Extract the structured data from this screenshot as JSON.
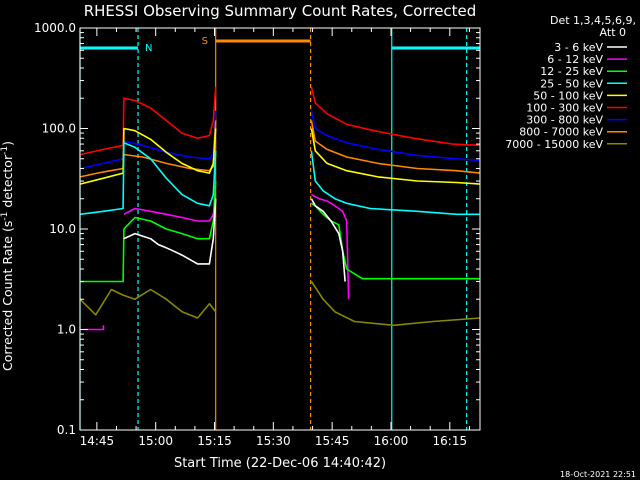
{
  "chart_data": {
    "type": "line",
    "title": "RHESSI Observing Summary Count Rates, Corrected",
    "xlabel": "Start Time (22-Dec-06 14:40:42)",
    "ylabel_main": "Corrected Count Rate (s",
    "ylabel_sup1": "-1",
    "ylabel_mid": " detector",
    "ylabel_sup2": "-1",
    "ylabel_end": ")",
    "y_scale": "log",
    "ylim": [
      0.1,
      1000
    ],
    "xlim_minutes": [
      0,
      102
    ],
    "x_ticks": [
      {
        "m": 4.3,
        "label": "14:45"
      },
      {
        "m": 19.3,
        "label": "15:00"
      },
      {
        "m": 34.3,
        "label": "15:15"
      },
      {
        "m": 49.3,
        "label": "15:30"
      },
      {
        "m": 64.3,
        "label": "15:45"
      },
      {
        "m": 79.3,
        "label": "16:00"
      },
      {
        "m": 94.3,
        "label": "16:15"
      }
    ],
    "y_ticks": [
      {
        "v": 1000,
        "label": "1000.0"
      },
      {
        "v": 100,
        "label": "100.0"
      },
      {
        "v": 10,
        "label": "10.0"
      },
      {
        "v": 1,
        "label": "1.0"
      },
      {
        "v": 0.1,
        "label": "0.1"
      }
    ],
    "legend_header": [
      "Det 1,3,4,5,6,9,",
      "Att 0"
    ],
    "legend_position": "right",
    "footer": "18-Oct-2021 22:51",
    "series": [
      {
        "name": "3 - 6 keV",
        "color": "#ffffff"
      },
      {
        "name": "6 - 12 keV",
        "color": "#ff00ff"
      },
      {
        "name": "12 - 25 keV",
        "color": "#00ff00"
      },
      {
        "name": "25 - 50 keV",
        "color": "#00ffff"
      },
      {
        "name": "50 - 100 keV",
        "color": "#ffff00"
      },
      {
        "name": "100 - 300 keV",
        "color": "#ff0000"
      },
      {
        "name": "300 - 800 keV",
        "color": "#0000ff"
      },
      {
        "name": "800 - 7000 keV",
        "color": "#ff8800"
      },
      {
        "name": "7000 - 15000 keV",
        "color": "#888800"
      }
    ],
    "night": {
      "label": "N",
      "color": "#00ffff",
      "intervals": [
        [
          0,
          14.8
        ],
        [
          79.5,
          102
        ]
      ],
      "boundaries": [
        0,
        14.8,
        79.5,
        98.6
      ]
    },
    "saa": {
      "label": "S",
      "color": "#ff8800",
      "interval": [
        34.6,
        58.8
      ]
    },
    "traces": [
      {
        "color": "#ff0000",
        "segments": [
          [
            [
              0,
              55
            ],
            [
              6,
              62
            ],
            [
              11,
              68
            ],
            [
              11.2,
              200
            ],
            [
              14,
              190
            ],
            [
              18,
              160
            ],
            [
              22,
              120
            ],
            [
              26,
              90
            ],
            [
              30,
              80
            ],
            [
              33,
              85
            ],
            [
              34,
              120
            ],
            [
              34.6,
              260
            ]
          ],
          [
            [
              59,
              260
            ],
            [
              60,
              180
            ],
            [
              63,
              140
            ],
            [
              68,
              110
            ],
            [
              75,
              95
            ],
            [
              85,
              80
            ],
            [
              95,
              70
            ],
            [
              102,
              68
            ]
          ]
        ]
      },
      {
        "color": "#0000ff",
        "segments": [
          [
            [
              0,
              40
            ],
            [
              6,
              45
            ],
            [
              11,
              50
            ],
            [
              11.2,
              75
            ],
            [
              16,
              68
            ],
            [
              22,
              58
            ],
            [
              28,
              52
            ],
            [
              33,
              50
            ],
            [
              34,
              55
            ],
            [
              34.6,
              150
            ]
          ],
          [
            [
              59,
              150
            ],
            [
              60,
              100
            ],
            [
              63,
              85
            ],
            [
              68,
              72
            ],
            [
              76,
              62
            ],
            [
              86,
              54
            ],
            [
              96,
              50
            ],
            [
              102,
              48
            ]
          ]
        ]
      },
      {
        "color": "#ff8800",
        "segments": [
          [
            [
              0,
              33
            ],
            [
              6,
              37
            ],
            [
              11,
              40
            ],
            [
              11.2,
              55
            ],
            [
              16,
              52
            ],
            [
              22,
              45
            ],
            [
              28,
              40
            ],
            [
              33,
              38
            ],
            [
              34,
              42
            ],
            [
              34.6,
              120
            ]
          ],
          [
            [
              59,
              120
            ],
            [
              60,
              75
            ],
            [
              63,
              62
            ],
            [
              68,
              52
            ],
            [
              76,
              45
            ],
            [
              86,
              40
            ],
            [
              96,
              38
            ],
            [
              102,
              36
            ]
          ]
        ]
      },
      {
        "color": "#ffff00",
        "segments": [
          [
            [
              0,
              28
            ],
            [
              6,
              32
            ],
            [
              11,
              36
            ],
            [
              11.2,
              100
            ],
            [
              14,
              95
            ],
            [
              18,
              78
            ],
            [
              22,
              58
            ],
            [
              26,
              45
            ],
            [
              30,
              38
            ],
            [
              33,
              36
            ],
            [
              34,
              45
            ],
            [
              34.6,
              100
            ]
          ],
          [
            [
              59,
              100
            ],
            [
              60,
              60
            ],
            [
              63,
              45
            ],
            [
              68,
              38
            ],
            [
              76,
              33
            ],
            [
              86,
              30
            ],
            [
              96,
              29
            ],
            [
              102,
              28
            ]
          ]
        ]
      },
      {
        "color": "#00ffff",
        "segments": [
          [
            [
              0,
              14
            ],
            [
              6,
              15
            ],
            [
              11,
              16
            ],
            [
              11.2,
              72
            ],
            [
              14,
              65
            ],
            [
              18,
              50
            ],
            [
              22,
              32
            ],
            [
              26,
              22
            ],
            [
              30,
              18
            ],
            [
              33,
              17
            ],
            [
              34,
              22
            ],
            [
              34.6,
              60
            ]
          ],
          [
            [
              59,
              60
            ],
            [
              60,
              30
            ],
            [
              62,
              24
            ],
            [
              65,
              20
            ],
            [
              68,
              18
            ],
            [
              74,
              16
            ],
            [
              86,
              15
            ],
            [
              96,
              14
            ],
            [
              102,
              14
            ]
          ]
        ]
      },
      {
        "color": "#ff00ff",
        "segments": [
          [
            [
              1,
              1
            ],
            [
              6,
              1
            ],
            [
              6,
              1.1
            ]
          ],
          [
            [
              11.2,
              14
            ],
            [
              14,
              16
            ],
            [
              18,
              15
            ],
            [
              22,
              14
            ],
            [
              26,
              13
            ],
            [
              30,
              12
            ],
            [
              33,
              12
            ],
            [
              34,
              14
            ],
            [
              34.6,
              20
            ]
          ],
          [
            [
              59,
              22
            ],
            [
              61,
              20
            ],
            [
              63,
              19
            ],
            [
              65,
              17
            ],
            [
              66,
              16
            ],
            [
              67,
              15
            ],
            [
              68,
              12
            ],
            [
              68.5,
              2
            ]
          ]
        ]
      },
      {
        "color": "#00ff00",
        "segments": [
          [
            [
              0,
              3
            ],
            [
              4,
              3
            ],
            [
              8,
              3
            ],
            [
              11,
              3
            ],
            [
              11.2,
              10
            ],
            [
              14,
              13
            ],
            [
              18,
              12
            ],
            [
              22,
              10
            ],
            [
              26,
              9
            ],
            [
              30,
              8
            ],
            [
              33,
              8
            ],
            [
              34,
              12
            ],
            [
              34.6,
              30
            ]
          ],
          [
            [
              59,
              18
            ],
            [
              60,
              17
            ],
            [
              62,
              14
            ],
            [
              64,
              12
            ],
            [
              66,
              11
            ],
            [
              67,
              6
            ],
            [
              68,
              4
            ],
            [
              72,
              3.2
            ],
            [
              80,
              3.2
            ],
            [
              90,
              3.2
            ],
            [
              102,
              3.2
            ]
          ]
        ]
      },
      {
        "color": "#ffffff",
        "segments": [
          [
            [
              11.2,
              8
            ],
            [
              14,
              9
            ],
            [
              18,
              8
            ],
            [
              20,
              7
            ],
            [
              22,
              6.5
            ],
            [
              24,
              6
            ],
            [
              26,
              5.5
            ],
            [
              30,
              4.5
            ],
            [
              33,
              4.5
            ],
            [
              34,
              8
            ],
            [
              34.6,
              20
            ]
          ],
          [
            [
              59,
              20
            ],
            [
              60,
              17
            ],
            [
              62,
              15
            ],
            [
              64,
              12
            ],
            [
              66,
              9
            ],
            [
              67,
              6
            ],
            [
              67.6,
              3
            ]
          ]
        ]
      },
      {
        "color": "#888800",
        "segments": [
          [
            [
              0,
              2
            ],
            [
              4,
              1.4
            ],
            [
              8,
              2.5
            ],
            [
              11,
              2.2
            ],
            [
              14,
              2
            ],
            [
              18,
              2.5
            ],
            [
              22,
              2
            ],
            [
              26,
              1.5
            ],
            [
              30,
              1.3
            ],
            [
              33,
              1.8
            ],
            [
              34.6,
              1.5
            ]
          ],
          [
            [
              59,
              3
            ],
            [
              62,
              2
            ],
            [
              65,
              1.5
            ],
            [
              70,
              1.2
            ],
            [
              80,
              1.1
            ],
            [
              90,
              1.2
            ],
            [
              102,
              1.3
            ]
          ]
        ]
      }
    ]
  }
}
